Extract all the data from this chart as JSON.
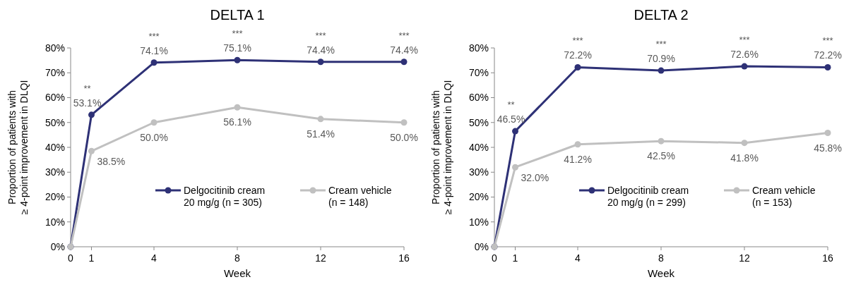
{
  "chart_data": [
    {
      "type": "line",
      "title": "DELTA 1",
      "xlabel": "Week",
      "ylabel": "Proportion of patients with\n≥ 4-point improvement in DLQI",
      "x": [
        0,
        1,
        4,
        8,
        12,
        16
      ],
      "xlim": [
        0,
        16
      ],
      "xticks": [
        0,
        1,
        4,
        8,
        12,
        16
      ],
      "ylim": [
        0,
        80
      ],
      "yticks": [
        {
          "value": 0,
          "label": "0%"
        },
        {
          "value": 10,
          "label": "10%"
        },
        {
          "value": 20,
          "label": "20%"
        },
        {
          "value": 30,
          "label": "30%"
        },
        {
          "value": 40,
          "label": "40%"
        },
        {
          "value": 50,
          "label": "50%"
        },
        {
          "value": 60,
          "label": "60%"
        },
        {
          "value": 70,
          "label": "70%"
        },
        {
          "value": 80,
          "label": "80%"
        }
      ],
      "series": [
        {
          "name": "Delgocitinib cream\n20 mg/g (n = 305)",
          "color": "#2e3176",
          "values": [
            0,
            53.1,
            74.1,
            75.1,
            74.4,
            74.4
          ],
          "value_labels": [
            null,
            "53.1%",
            "74.1%",
            "75.1%",
            "74.4%",
            "74.4%"
          ]
        },
        {
          "name": "Cream vehicle\n(n = 148)",
          "color": "#c0c0c0",
          "values": [
            0,
            38.5,
            50.0,
            56.1,
            51.4,
            50.0
          ],
          "value_labels": [
            null,
            "38.5%",
            "50.0%",
            "56.1%",
            "51.4%",
            "50.0%"
          ]
        }
      ],
      "annotations": [
        {
          "text": "**",
          "x": 1,
          "y": 53.1
        },
        {
          "text": "***",
          "x": 4,
          "y": 74.1
        },
        {
          "text": "***",
          "x": 8,
          "y": 75.1
        },
        {
          "text": "***",
          "x": 12,
          "y": 74.4
        },
        {
          "text": "***",
          "x": 16,
          "y": 74.4
        }
      ],
      "marker": "circle",
      "line_style": "solid",
      "grid": false,
      "legend": "bottom right"
    },
    {
      "type": "line",
      "title": "DELTA 2",
      "xlabel": "Week",
      "ylabel": "Proportion of patients with\n≥ 4-point improvement in DLQI",
      "x": [
        0,
        1,
        4,
        8,
        12,
        16
      ],
      "xlim": [
        0,
        16
      ],
      "xticks": [
        0,
        1,
        4,
        8,
        12,
        16
      ],
      "ylim": [
        0,
        80
      ],
      "yticks": [
        {
          "value": 0,
          "label": "0%"
        },
        {
          "value": 10,
          "label": "10%"
        },
        {
          "value": 20,
          "label": "20%"
        },
        {
          "value": 30,
          "label": "30%"
        },
        {
          "value": 40,
          "label": "40%"
        },
        {
          "value": 50,
          "label": "50%"
        },
        {
          "value": 60,
          "label": "60%"
        },
        {
          "value": 70,
          "label": "70%"
        },
        {
          "value": 80,
          "label": "80%"
        }
      ],
      "series": [
        {
          "name": "Delgocitinib cream\n20 mg/g (n = 299)",
          "color": "#2e3176",
          "values": [
            0,
            46.5,
            72.2,
            70.9,
            72.6,
            72.2
          ],
          "value_labels": [
            null,
            "46.5%",
            "72.2%",
            "70.9%",
            "72.6%",
            "72.2%"
          ]
        },
        {
          "name": "Cream vehicle\n(n = 153)",
          "color": "#c0c0c0",
          "values": [
            0,
            32.0,
            41.2,
            42.5,
            41.8,
            45.8
          ],
          "value_labels": [
            null,
            "32.0%",
            "41.2%",
            "42.5%",
            "41.8%",
            "45.8%"
          ]
        }
      ],
      "annotations": [
        {
          "text": "**",
          "x": 1,
          "y": 46.5
        },
        {
          "text": "***",
          "x": 4,
          "y": 72.2
        },
        {
          "text": "***",
          "x": 8,
          "y": 70.9
        },
        {
          "text": "***",
          "x": 12,
          "y": 72.6
        },
        {
          "text": "***",
          "x": 16,
          "y": 72.2
        }
      ],
      "marker": "circle",
      "line_style": "solid",
      "grid": false,
      "legend": "bottom right"
    }
  ]
}
